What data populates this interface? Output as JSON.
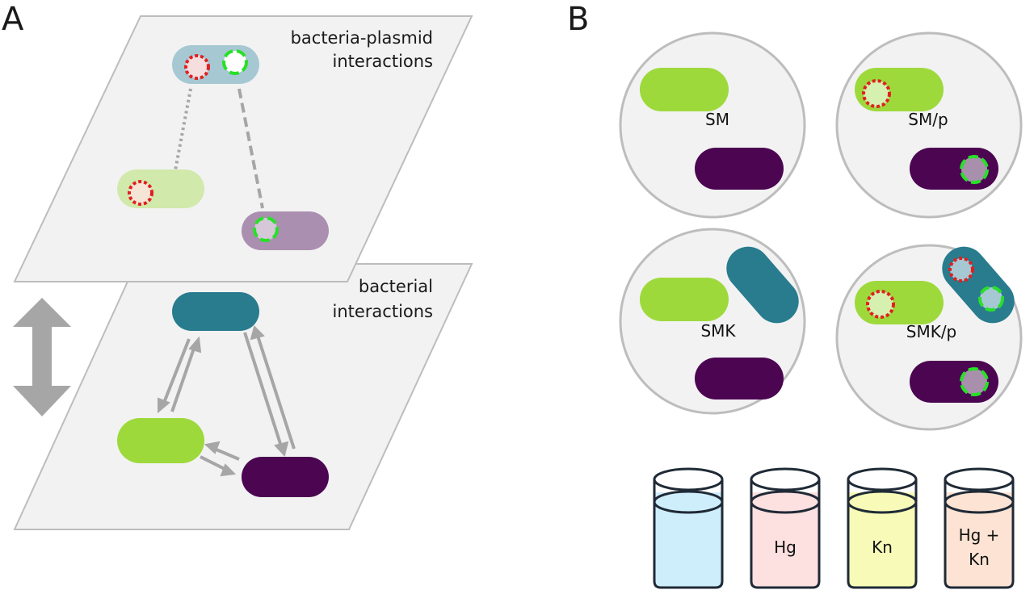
{
  "panel_a": {
    "letter": "A",
    "upper_plane_label_line1": "bacteria-plasmid",
    "upper_plane_label_line2": "interactions",
    "lower_plane_label_line1": "bacterial",
    "lower_plane_label_line2": "interactions"
  },
  "panel_b": {
    "letter": "B",
    "dishes": [
      {
        "label": "SM"
      },
      {
        "label": "SM/p"
      },
      {
        "label": "SMK"
      },
      {
        "label": "SMK/p"
      }
    ],
    "flasks": [
      {
        "label_line1": "",
        "label_line2": ""
      },
      {
        "label_line1": "Hg",
        "label_line2": ""
      },
      {
        "label_line1": "Kn",
        "label_line2": ""
      },
      {
        "label_line1": "Hg +",
        "label_line2": "Kn"
      }
    ]
  },
  "colors": {
    "green_strain": "#9ed93c",
    "purple_strain": "#4b0551",
    "teal_strain": "#287c8e",
    "green_strain_faded": "#d1e9ab",
    "purple_strain_faded": "#ab8fb1",
    "teal_strain_faded": "#a6c8d3",
    "plasmid_red": "#e02020",
    "plasmid_green": "#28e028",
    "plane_fill": "#f2f2f2",
    "plane_stroke": "#bdbdbd",
    "flask_none": "#cfeefb",
    "flask_hg": "#fde0e0",
    "flask_kn": "#f8fbb8",
    "flask_hg_kn": "#fde3d4"
  },
  "icons": [
    "double-headed-vertical-arrow",
    "interaction-arrow-pair",
    "plasmid-ring"
  ]
}
